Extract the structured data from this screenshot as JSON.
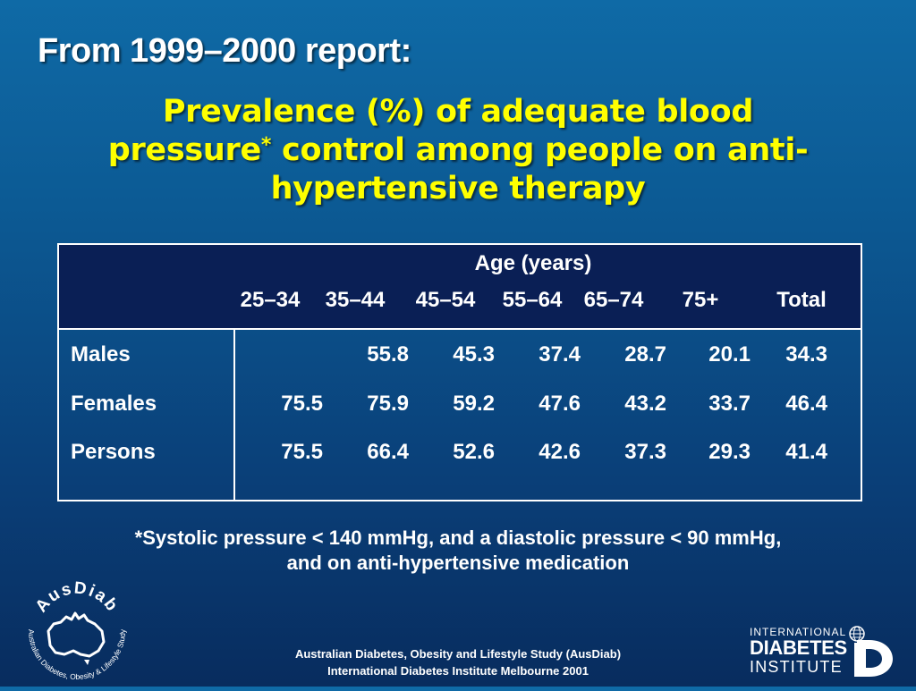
{
  "slide": {
    "heading": "From 1999–2000 report:",
    "title_part1": "Prevalence (%) of adequate blood pressure",
    "title_asterisk": "*",
    "title_part2": " control among people on anti-hypertensive therapy"
  },
  "table": {
    "group_header": "Age (years)",
    "columns": [
      "25–34",
      "35–44",
      "45–54",
      "55–64",
      "65–74",
      "75+",
      "Total"
    ],
    "rows": [
      {
        "label": "Males",
        "values": [
          "",
          "55.8",
          "45.3",
          "37.4",
          "28.7",
          "20.1",
          "34.3"
        ]
      },
      {
        "label": "Females",
        "values": [
          "75.5",
          "75.9",
          "59.2",
          "47.6",
          "43.2",
          "33.7",
          "46.4"
        ]
      },
      {
        "label": "Persons",
        "values": [
          "75.5",
          "66.4",
          "52.6",
          "42.6",
          "37.3",
          "29.3",
          "41.4"
        ]
      }
    ]
  },
  "footnote": {
    "line1": "*Systolic pressure < 140 mmHg, and a diastolic pressure < 90 mmHg,",
    "line2": "and on anti-hypertensive medication"
  },
  "footer": {
    "line1": "Australian Diabetes, Obesity and Lifestyle Study (AusDiab)",
    "line2": "International Diabetes Institute Melbourne 2001"
  },
  "logos": {
    "ausdiab": {
      "name": "AusDiab",
      "ring_text": "Australian Diabetes, Obesity & Lifestyle Study",
      "icon": "australia-map-icon"
    },
    "idi": {
      "line1": "INTERNATIONAL",
      "line2": "DIABETES",
      "line3": "INSTITUTE",
      "icon": "globe-icon"
    }
  },
  "colors": {
    "background_top": "#0f6aa6",
    "background_bottom": "#082c5e",
    "title": "#ffff00",
    "table_header": "#0a1f55",
    "text": "#ffffff"
  }
}
